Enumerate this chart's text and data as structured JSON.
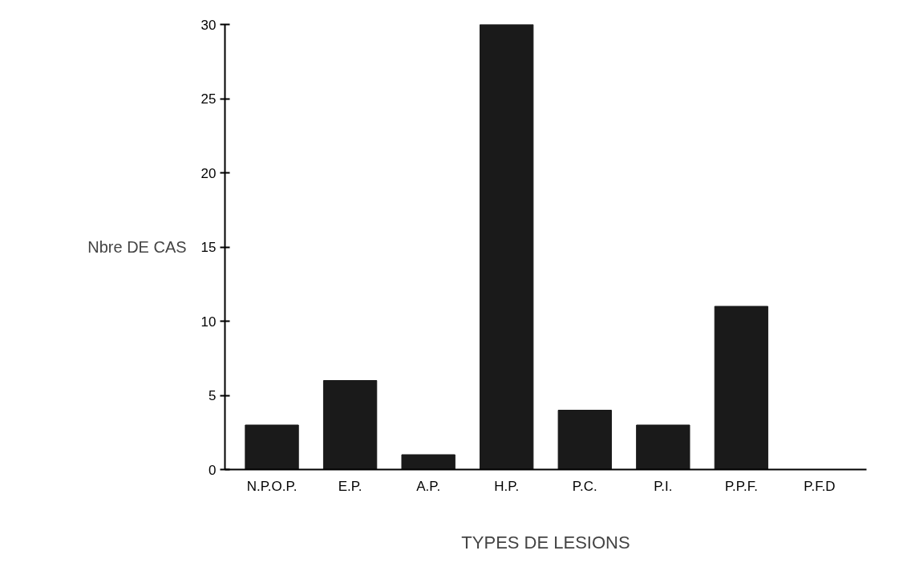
{
  "chart_data": {
    "type": "bar",
    "xlabel": "TYPES DE LESIONS",
    "ylabel": "Nbre DE CAS",
    "categories": [
      "N.P.O.P.",
      "E.P.",
      "A.P.",
      "H.P.",
      "P.C.",
      "P.I.",
      "P.P.F.",
      "P.F.D"
    ],
    "values": [
      3,
      6,
      1,
      30,
      4,
      3,
      11,
      0
    ],
    "color": "#1a1a1a",
    "ylim": [
      0,
      30
    ],
    "yticks": [
      0,
      5,
      10,
      15,
      20,
      25,
      30
    ],
    "grid": false
  }
}
